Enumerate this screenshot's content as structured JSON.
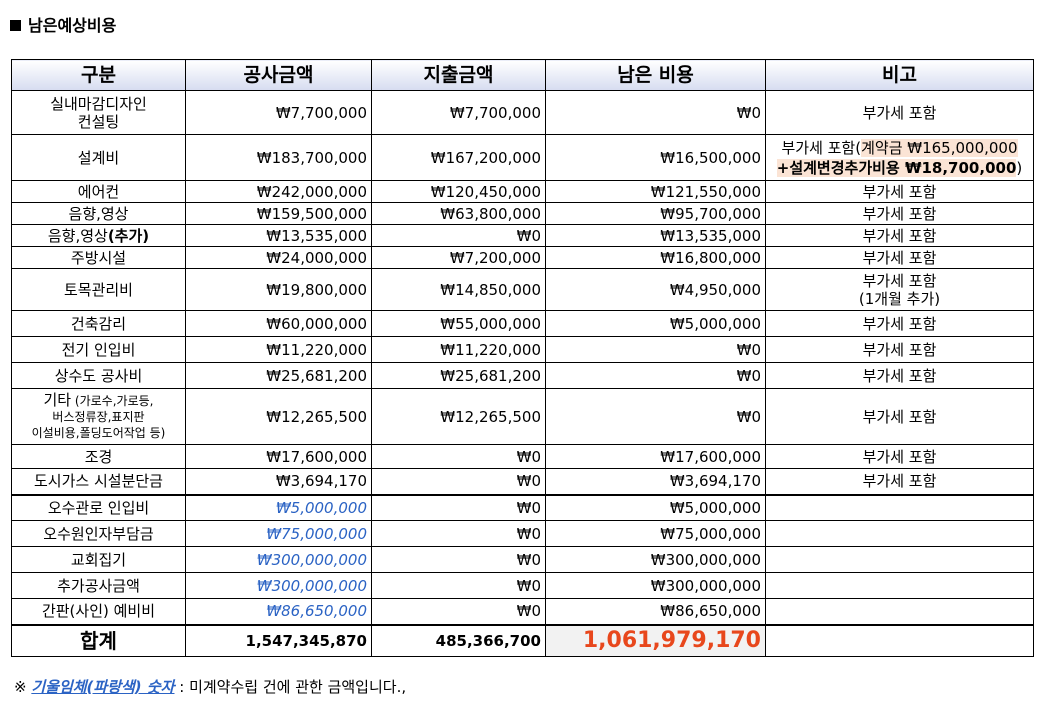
{
  "title": "남은예상비용",
  "headers": [
    "구분",
    "공사금액",
    "지출금액",
    "남은 비용",
    "비고"
  ],
  "rows": [
    {
      "name": "실내마감디자인\n컨설팅",
      "contract": "₩7,700,000",
      "spent": "₩7,700,000",
      "remain": "₩0",
      "note": "부가세 포함"
    },
    {
      "name": "설계비",
      "contract": "₩183,700,000",
      "spent": "₩167,200,000",
      "remain": "₩16,500,000",
      "note_parts": [
        "부가세 포함(",
        "계약금 ₩165,000,000",
        "+설계변경추가비용 ₩18,700,000",
        ")"
      ]
    },
    {
      "name": "에어컨",
      "contract": "₩242,000,000",
      "spent": "₩120,450,000",
      "remain": "₩121,550,000",
      "note": "부가세 포함"
    },
    {
      "name": "음향,영상",
      "contract": "₩159,500,000",
      "spent": "₩63,800,000",
      "remain": "₩95,700,000",
      "note": "부가세 포함"
    },
    {
      "name_main": "음향,영상",
      "name_bold": "(추가)",
      "contract": "₩13,535,000",
      "spent": "₩0",
      "remain": "₩13,535,000",
      "note": "부가세 포함"
    },
    {
      "name": "주방시설",
      "contract": "₩24,000,000",
      "spent": "₩7,200,000",
      "remain": "₩16,800,000",
      "note": "부가세 포함"
    },
    {
      "name": "토목관리비",
      "contract": "₩19,800,000",
      "spent": "₩14,850,000",
      "remain": "₩4,950,000",
      "note": "부가세 포함\n(1개월 추가)"
    },
    {
      "name": "건축감리",
      "contract": "₩60,000,000",
      "spent": "₩55,000,000",
      "remain": "₩5,000,000",
      "note": "부가세 포함"
    },
    {
      "name": "전기 인입비",
      "contract": "₩11,220,000",
      "spent": "₩11,220,000",
      "remain": "₩0",
      "note": "부가세 포함"
    },
    {
      "name": "상수도 공사비",
      "contract": "₩25,681,200",
      "spent": "₩25,681,200",
      "remain": "₩0",
      "note": "부가세 포함"
    },
    {
      "name_main": "기타",
      "name_small": " (가로수,가로등,\n버스정류장,표지판\n이설비용,폴딩도어작업 등)",
      "contract": "₩12,265,500",
      "spent": "₩12,265,500",
      "remain": "₩0",
      "note": "부가세 포함"
    },
    {
      "name": "조경",
      "contract": "₩17,600,000",
      "spent": "₩0",
      "remain": "₩17,600,000",
      "note": "부가세 포함"
    },
    {
      "name": "도시가스 시설분단금",
      "contract": "₩3,694,170",
      "spent": "₩0",
      "remain": "₩3,694,170",
      "note": "부가세 포함"
    },
    {
      "name": "오수관로 인입비",
      "contract": "₩5,000,000",
      "spent": "₩0",
      "remain": "₩5,000,000",
      "note": ""
    },
    {
      "name": "오수원인자부담금",
      "contract": "₩75,000,000",
      "spent": "₩0",
      "remain": "₩75,000,000",
      "note": ""
    },
    {
      "name": "교회집기",
      "contract": "₩300,000,000",
      "spent": "₩0",
      "remain": "₩300,000,000",
      "note": ""
    },
    {
      "name": "추가공사금액",
      "contract": "₩300,000,000",
      "spent": "₩0",
      "remain": "₩300,000,000",
      "note": ""
    },
    {
      "name": "간판(사인) 예비비",
      "contract": "₩86,650,000",
      "spent": "₩0",
      "remain": "₩86,650,000",
      "note": ""
    }
  ],
  "total": {
    "label": "합계",
    "contract": "1,547,345,870",
    "spent": "485,366,700",
    "remain": "1,061,979,170"
  },
  "footnote": {
    "prefix": "※ ",
    "highlight": "기울임체(파랑색) 숫자",
    "text": " : 미계약수립 건에 관한 금액입니다.,"
  },
  "colors": {
    "blue_italic": "#2b63c4",
    "remain_total": "#e8471c",
    "header_gradient_end": "#d6dcf0",
    "highlight_bg": "#fbe4d5"
  }
}
